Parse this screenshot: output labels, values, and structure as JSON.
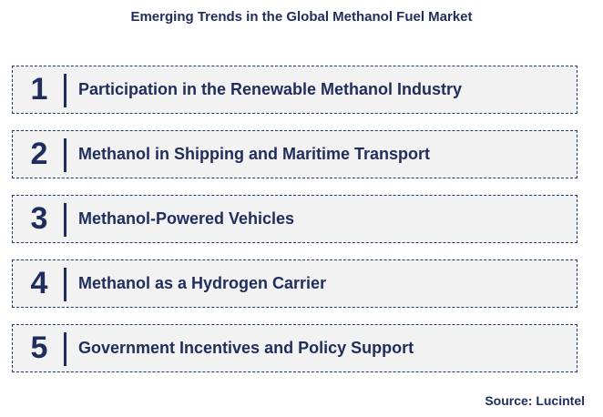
{
  "title": "Emerging Trends in the Global Methanol Fuel Market",
  "trends": [
    {
      "number": "1",
      "label": "Participation in the Renewable Methanol Industry"
    },
    {
      "number": "2",
      "label": "Methanol in Shipping and Maritime Transport"
    },
    {
      "number": "3",
      "label": "Methanol-Powered Vehicles"
    },
    {
      "number": "4",
      "label": "Methanol as a Hydrogen Carrier"
    },
    {
      "number": "5",
      "label": "Government Incentives and Policy Support"
    }
  ],
  "source": "Source: Lucintel",
  "colors": {
    "text": "#1f2d5c",
    "box_fill": "#f2f2f2",
    "box_border": "#1f3a6b"
  }
}
